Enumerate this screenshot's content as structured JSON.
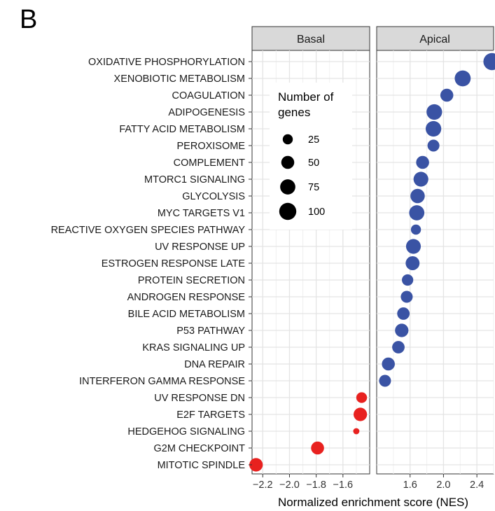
{
  "panel_label": "B",
  "chart_data": {
    "type": "scatter",
    "panels": [
      "Basal",
      "Apical"
    ],
    "xlabel": "Normalized enrichment score (NES)",
    "legend": {
      "title_line1": "Number of",
      "title_line2": "genes",
      "sizes": [
        25,
        50,
        75,
        100
      ],
      "placement": "top-left of Basal panel"
    },
    "colors": {
      "apical": "#3a53a4",
      "basal": "#e8211f"
    },
    "basal_x_range": [
      -2.28,
      -1.4
    ],
    "basal_ticks": [
      -2.2,
      -2.0,
      -1.8,
      -1.6
    ],
    "basal_tick_labels": [
      "−2.2",
      "−2.0",
      "−1.8",
      "−1.6"
    ],
    "apical_x_range": [
      1.2,
      2.6
    ],
    "apical_ticks": [
      1.6,
      2.0,
      2.4
    ],
    "apical_tick_labels": [
      "1.6",
      "2.0",
      "2.4"
    ],
    "grid": true,
    "categories": [
      "OXIDATIVE PHOSPHORYLATION",
      "XENOBIOTIC METABOLISM",
      "COAGULATION",
      "ADIPOGENESIS",
      "FATTY ACID METABOLISM",
      "PEROXISOME",
      "COMPLEMENT",
      "MTORC1 SIGNALING",
      "GLYCOLYSIS",
      "MYC TARGETS V1",
      "REACTIVE OXYGEN SPECIES PATHWAY",
      "UV RESPONSE UP",
      "ESTROGEN RESPONSE LATE",
      "PROTEIN SECRETION",
      "ANDROGEN RESPONSE",
      "BILE ACID METABOLISM",
      "P53 PATHWAY",
      "KRAS SIGNALING UP",
      "DNA REPAIR",
      "INTERFERON GAMMA RESPONSE",
      "UV RESPONSE DN",
      "E2F TARGETS",
      "HEDGEHOG SIGNALING",
      "G2M CHECKPOINT",
      "MITOTIC SPINDLE"
    ],
    "points": [
      {
        "category": "OXIDATIVE PHOSPHORYLATION",
        "panel": "Apical",
        "nes": 2.58,
        "genes": 100
      },
      {
        "category": "XENOBIOTIC METABOLISM",
        "panel": "Apical",
        "nes": 2.23,
        "genes": 85
      },
      {
        "category": "COAGULATION",
        "panel": "Apical",
        "nes": 2.04,
        "genes": 50
      },
      {
        "category": "ADIPOGENESIS",
        "panel": "Apical",
        "nes": 1.89,
        "genes": 80
      },
      {
        "category": "FATTY ACID METABOLISM",
        "panel": "Apical",
        "nes": 1.88,
        "genes": 80
      },
      {
        "category": "PEROXISOME",
        "panel": "Apical",
        "nes": 1.88,
        "genes": 40
      },
      {
        "category": "COMPLEMENT",
        "panel": "Apical",
        "nes": 1.75,
        "genes": 50
      },
      {
        "category": "MTORC1 SIGNALING",
        "panel": "Apical",
        "nes": 1.73,
        "genes": 70
      },
      {
        "category": "GLYCOLYSIS",
        "panel": "Apical",
        "nes": 1.69,
        "genes": 65
      },
      {
        "category": "MYC TARGETS V1",
        "panel": "Apical",
        "nes": 1.68,
        "genes": 75
      },
      {
        "category": "REACTIVE OXYGEN SPECIES PATHWAY",
        "panel": "Apical",
        "nes": 1.67,
        "genes": 25
      },
      {
        "category": "UV RESPONSE UP",
        "panel": "Apical",
        "nes": 1.64,
        "genes": 70
      },
      {
        "category": "ESTROGEN RESPONSE LATE",
        "panel": "Apical",
        "nes": 1.63,
        "genes": 60
      },
      {
        "category": "PROTEIN SECRETION",
        "panel": "Apical",
        "nes": 1.57,
        "genes": 35
      },
      {
        "category": "ANDROGEN RESPONSE",
        "panel": "Apical",
        "nes": 1.56,
        "genes": 40
      },
      {
        "category": "BILE ACID METABOLISM",
        "panel": "Apical",
        "nes": 1.52,
        "genes": 45
      },
      {
        "category": "P53 PATHWAY",
        "panel": "Apical",
        "nes": 1.5,
        "genes": 55
      },
      {
        "category": "KRAS SIGNALING UP",
        "panel": "Apical",
        "nes": 1.46,
        "genes": 45
      },
      {
        "category": "DNA REPAIR",
        "panel": "Apical",
        "nes": 1.34,
        "genes": 50
      },
      {
        "category": "INTERFERON GAMMA RESPONSE",
        "panel": "Apical",
        "nes": 1.3,
        "genes": 40
      },
      {
        "category": "UV RESPONSE DN",
        "panel": "Basal",
        "nes": -1.46,
        "genes": 30
      },
      {
        "category": "E2F TARGETS",
        "panel": "Basal",
        "nes": -1.47,
        "genes": 55
      },
      {
        "category": "HEDGEHOG SIGNALING",
        "panel": "Basal",
        "nes": -1.5,
        "genes": 5
      },
      {
        "category": "G2M CHECKPOINT",
        "panel": "Basal",
        "nes": -1.79,
        "genes": 50
      },
      {
        "category": "MITOTIC SPINDLE",
        "panel": "Basal",
        "nes": -2.25,
        "genes": 55
      }
    ]
  }
}
